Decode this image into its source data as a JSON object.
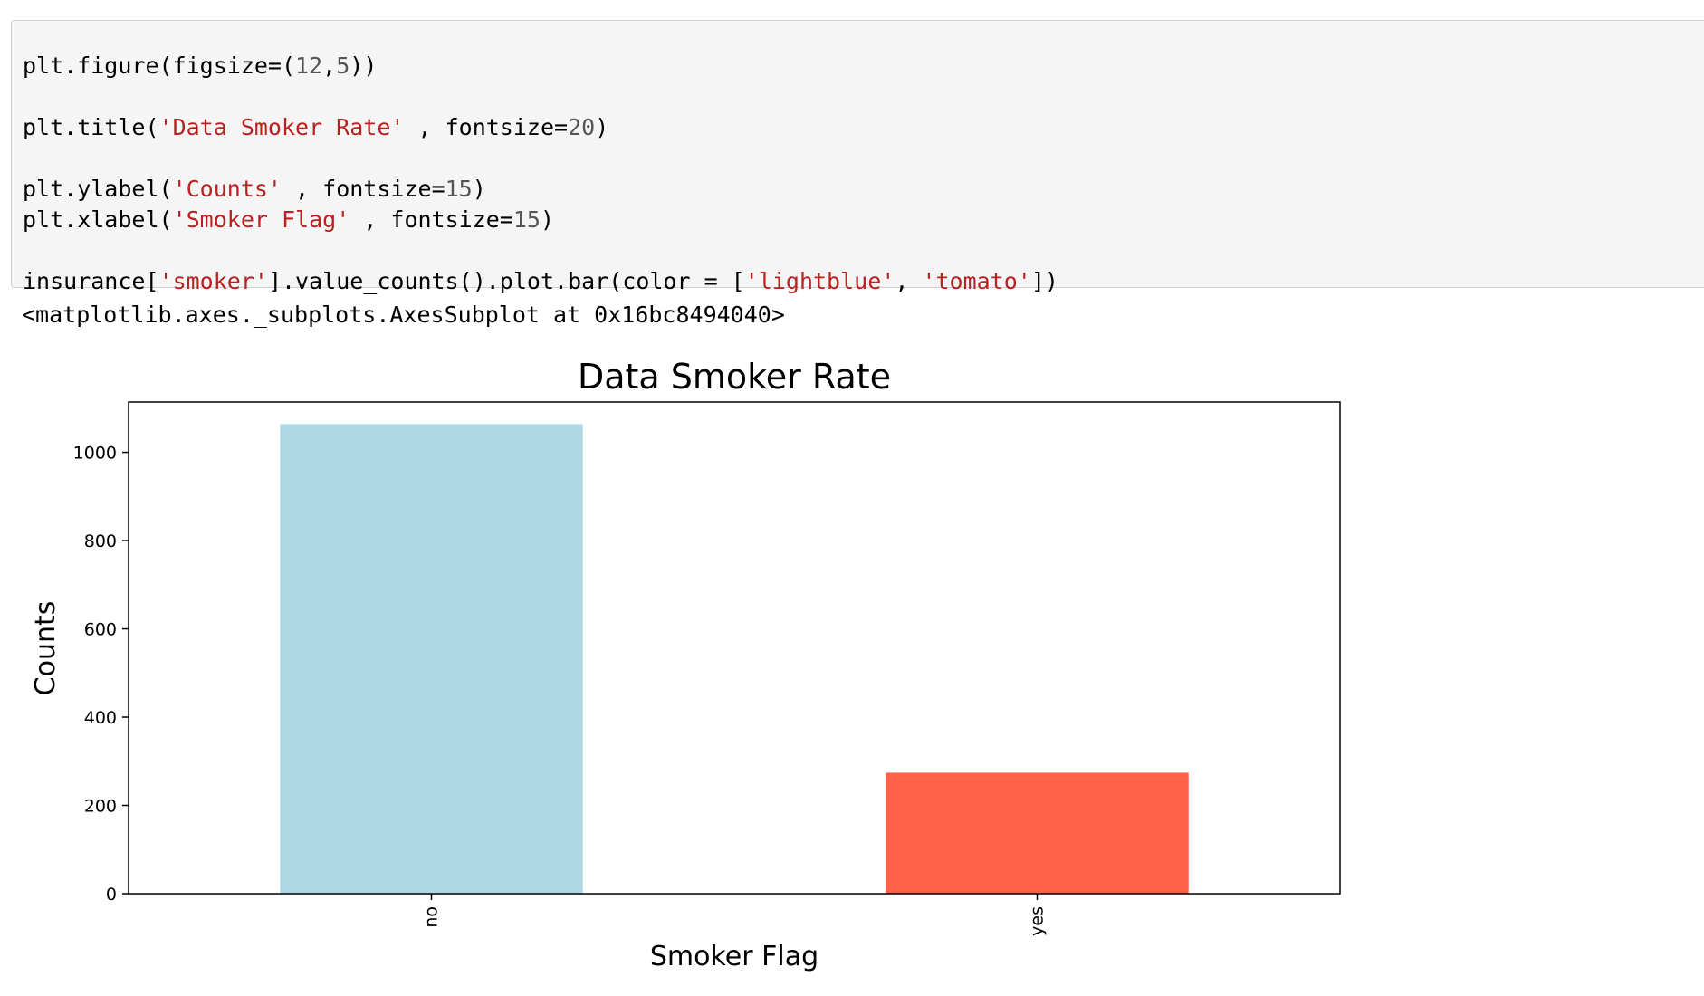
{
  "code_cell": {
    "lines": [
      {
        "tokens": [
          {
            "text": "plt.figure(figsize=(",
            "c": "p"
          },
          {
            "text": "12",
            "c": "n"
          },
          {
            "text": ",",
            "c": "p"
          },
          {
            "text": "5",
            "c": "n"
          },
          {
            "text": "))",
            "c": "p"
          }
        ]
      },
      {
        "tokens": [
          {
            "text": "plt.title(",
            "c": "p"
          },
          {
            "text": "'Data Smoker Rate'",
            "c": "s"
          },
          {
            "text": " , fontsize=",
            "c": "p"
          },
          {
            "text": "20",
            "c": "n"
          },
          {
            "text": ")",
            "c": "p"
          }
        ]
      },
      {
        "tokens": [
          {
            "text": "plt.ylabel(",
            "c": "p"
          },
          {
            "text": "'Counts'",
            "c": "s"
          },
          {
            "text": " , fontsize=",
            "c": "p"
          },
          {
            "text": "15",
            "c": "n"
          },
          {
            "text": ")",
            "c": "p"
          }
        ]
      },
      {
        "tokens": [
          {
            "text": "plt.xlabel(",
            "c": "p"
          },
          {
            "text": "'Smoker Flag'",
            "c": "s"
          },
          {
            "text": " , fontsize=",
            "c": "p"
          },
          {
            "text": "15",
            "c": "n"
          },
          {
            "text": ")",
            "c": "p"
          }
        ]
      },
      {
        "tokens": [
          {
            "text": "insurance[",
            "c": "p"
          },
          {
            "text": "'smoker'",
            "c": "s"
          },
          {
            "text": "].value_counts().plot.bar(color = [",
            "c": "p"
          },
          {
            "text": "'lightblue'",
            "c": "s"
          },
          {
            "text": ", ",
            "c": "p"
          },
          {
            "text": "'tomato'",
            "c": "s"
          },
          {
            "text": "])",
            "c": "p"
          }
        ]
      }
    ]
  },
  "output": {
    "text": "<matplotlib.axes._subplots.AxesSubplot at 0x16bc8494040>"
  },
  "colors": {
    "code_string": "#ba2121",
    "code_number": "#555555",
    "code_plain": "#000000",
    "bar_no": "#add8e6",
    "bar_yes": "#ff6347"
  },
  "chart_data": {
    "type": "bar",
    "title": "Data Smoker Rate",
    "xlabel": "Smoker Flag",
    "ylabel": "Counts",
    "categories": [
      "no",
      "yes"
    ],
    "values": [
      1064,
      274
    ],
    "colors": [
      "#add8e6",
      "#ff6347"
    ],
    "ylim": [
      0,
      1114
    ],
    "yticks": [
      0,
      200,
      400,
      600,
      800,
      1000
    ],
    "xtick_rotation": "vertical",
    "grid": false,
    "legend": false
  }
}
